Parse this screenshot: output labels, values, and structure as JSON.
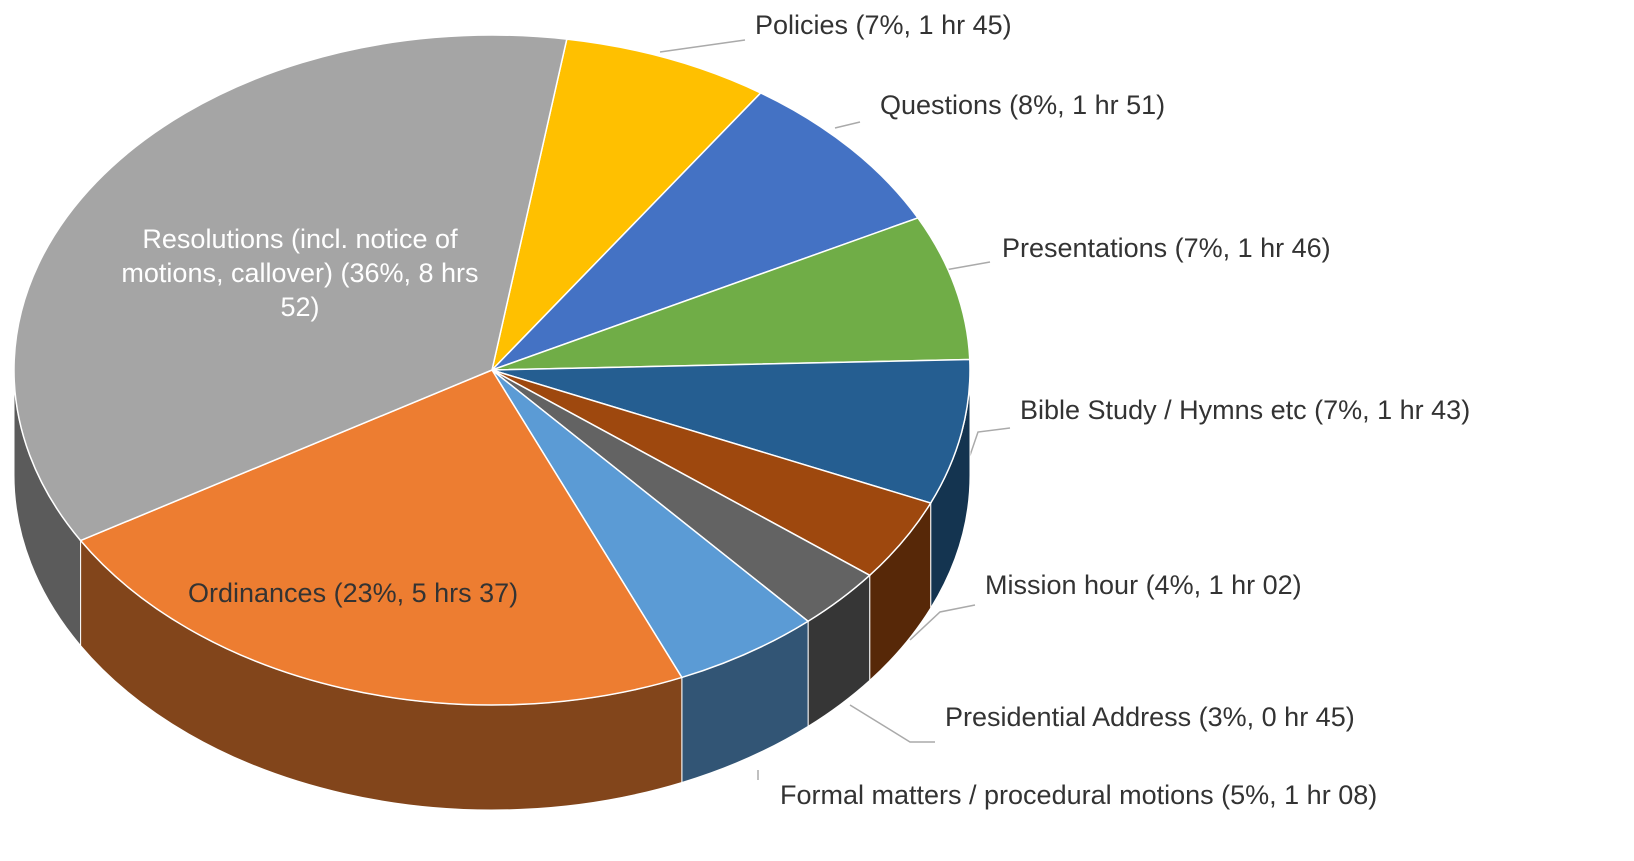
{
  "chart_data": {
    "type": "pie",
    "value_labels": [
      "Policies (7%, 1 hr 45)",
      "Questions (8%, 1 hr 51)",
      "Presentations (7%, 1 hr 46)",
      "Bible Study / Hymns etc (7%, 1 hr 43)",
      "Mission hour (4%, 1 hr 02)",
      "Presidential Address (3%, 0 hr 45)",
      "Formal matters / procedural motions (5%, 1 hr 08)",
      "Ordinances (23%, 5 hrs 37)",
      "Resolutions (incl. notice of motions, callover) (36%, 8 hrs 52)"
    ],
    "values": [
      7,
      8,
      7,
      7,
      4,
      3,
      5,
      23,
      36
    ],
    "colors": [
      "#ffc000",
      "#4472c4",
      "#70ad47",
      "#255e91",
      "#9e480e",
      "#636363",
      "#5b9bd5",
      "#ed7d31",
      "#a5a5a5"
    ]
  }
}
